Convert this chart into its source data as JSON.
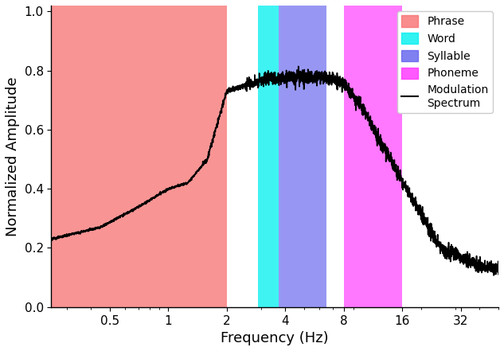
{
  "xlabel": "Frequency (Hz)",
  "ylabel": "Normalized Amplitude",
  "xlim_log": [
    0.25,
    50
  ],
  "ylim": [
    0,
    1.05
  ],
  "yticks": [
    0,
    0.2,
    0.4,
    0.6,
    0.8,
    1.0
  ],
  "xtick_positions": [
    0.5,
    1,
    2,
    4,
    8,
    16,
    32
  ],
  "xtick_labels": [
    "0.5",
    "1",
    "2",
    "4",
    "8",
    "16",
    "32"
  ],
  "bands": [
    {
      "xmin": 0.25,
      "xmax": 2.0,
      "color": "#F87070",
      "alpha": 0.75,
      "label": "Phrase"
    },
    {
      "xmin": 2.9,
      "xmax": 3.7,
      "color": "#00EFEF",
      "alpha": 0.75,
      "label": "Word"
    },
    {
      "xmin": 3.7,
      "xmax": 6.5,
      "color": "#6060EE",
      "alpha": 0.65,
      "label": "Syllable"
    },
    {
      "xmin": 8.0,
      "xmax": 16.0,
      "color": "#FF30FF",
      "alpha": 0.65,
      "label": "Phoneme"
    }
  ],
  "legend_labels": [
    "Phrase",
    "Word",
    "Syllable",
    "Phoneme",
    "Modulation\nSpectrum"
  ],
  "legend_colors": [
    "#F87070",
    "#00EFEF",
    "#6060EE",
    "#FF30FF",
    "#000000"
  ],
  "curve_color": "#000000",
  "curve_linewidth": 1.2,
  "background_color": "#ffffff"
}
